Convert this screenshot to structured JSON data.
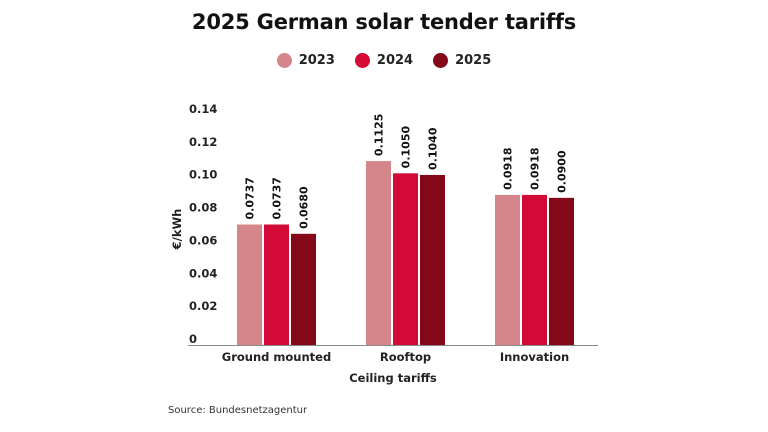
{
  "chart_data": {
    "type": "bar",
    "title": "2025 German solar tender tariffs",
    "xlabel": "Ceiling tariffs",
    "ylabel": "€/kWh",
    "categories": [
      "Ground mounted",
      "Rooftop",
      "Innovation"
    ],
    "series": [
      {
        "name": "2023",
        "color": "#d4868a",
        "values": [
          0.0737,
          0.1125,
          0.0918
        ],
        "labels": [
          "0.0737",
          "0.1125",
          "0.0918"
        ]
      },
      {
        "name": "2024",
        "color": "#d20a35",
        "values": [
          0.0737,
          0.105,
          0.0918
        ],
        "labels": [
          "0.0737",
          "0.1050",
          "0.0918"
        ]
      },
      {
        "name": "2025",
        "color": "#85081a",
        "values": [
          0.068,
          0.104,
          0.09
        ],
        "labels": [
          "0.0680",
          "0.1040",
          "0.0900"
        ]
      }
    ],
    "yticks": [
      "0",
      "0.02",
      "0.04",
      "0.06",
      "0.08",
      "0.10",
      "0.12",
      "0.14"
    ],
    "ylim": [
      0,
      0.14
    ],
    "grid": false,
    "legend_position": "top-center",
    "source": "Source: Bundesnetzagentur"
  }
}
